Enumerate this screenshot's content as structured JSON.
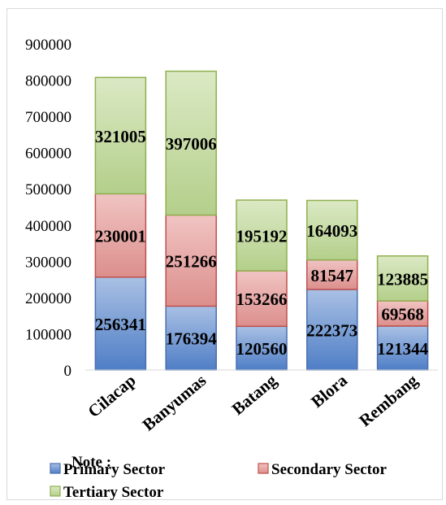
{
  "chart_data": {
    "type": "bar",
    "stacked": true,
    "categories": [
      "Cilacap",
      "Banyumas",
      "Batang",
      "Blora",
      "Rembang"
    ],
    "series": [
      {
        "name": "Primary Sector",
        "values": [
          256341,
          176394,
          120560,
          222373,
          121344
        ],
        "fill_top": "#a9c0e4",
        "fill_bottom": "#4f7ec6",
        "stroke": "#4a6fb0"
      },
      {
        "name": "Secondary Sector",
        "values": [
          230001,
          251266,
          153266,
          81547,
          69568
        ],
        "fill_top": "#f0c4c3",
        "fill_bottom": "#dc8f8c",
        "stroke": "#c0504d"
      },
      {
        "name": "Tertiary Sector",
        "values": [
          321005,
          397006,
          195192,
          164093,
          123885
        ],
        "fill_top": "#dbe9c4",
        "fill_bottom": "#b4cf8b",
        "stroke": "#8fb04f"
      }
    ],
    "ylim": [
      0,
      900000
    ],
    "yticks": [
      "0",
      "100000",
      "200000",
      "300000",
      "400000",
      "500000",
      "600000",
      "700000",
      "800000",
      "900000"
    ],
    "legend_title": "Note :",
    "legend_position": "bottom"
  }
}
